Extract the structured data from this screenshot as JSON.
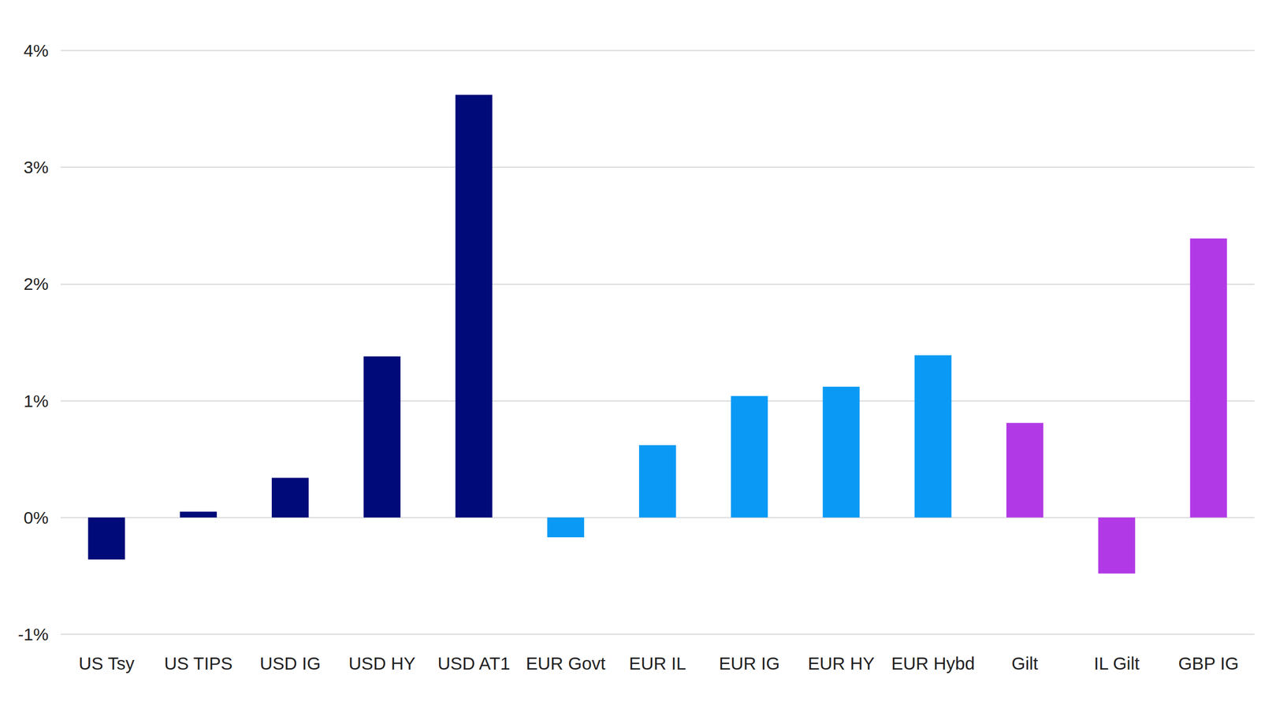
{
  "chart_data": {
    "type": "bar",
    "categories": [
      "US Tsy",
      "US TIPS",
      "USD IG",
      "USD HY",
      "USD AT1",
      "EUR Govt",
      "EUR IL",
      "EUR IG",
      "EUR HY",
      "EUR Hybd",
      "Gilt",
      "IL Gilt",
      "GBP IG"
    ],
    "values": [
      -0.36,
      0.05,
      0.34,
      1.38,
      3.62,
      -0.17,
      0.62,
      1.04,
      1.12,
      1.39,
      0.81,
      -0.48,
      2.39
    ],
    "colors": [
      "#000a78",
      "#000a78",
      "#000a78",
      "#000a78",
      "#000a78",
      "#0a9af5",
      "#0a9af5",
      "#0a9af5",
      "#0a9af5",
      "#0a9af5",
      "#b23ae6",
      "#b23ae6",
      "#b23ae6"
    ],
    "ylim": [
      -1,
      4
    ],
    "yticks": [
      {
        "value": -1,
        "label": "-1%"
      },
      {
        "value": 0,
        "label": "0%"
      },
      {
        "value": 1,
        "label": "1%"
      },
      {
        "value": 2,
        "label": "2%"
      },
      {
        "value": 3,
        "label": "3%"
      },
      {
        "value": 4,
        "label": "4%"
      }
    ],
    "grid": true
  }
}
